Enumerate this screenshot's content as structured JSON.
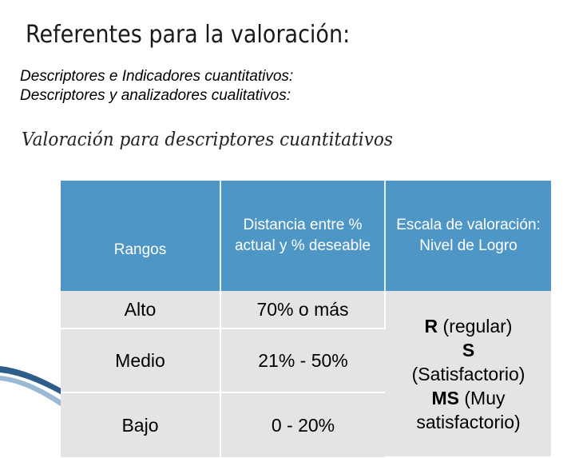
{
  "title": "Referentes para la valoración:",
  "lines": [
    "Descriptores e Indicadores cuantitativos:",
    "Descriptores y analizadores cualitativos:"
  ],
  "subtitle": "Valoración para descriptores cuantitativos",
  "table": {
    "headers": [
      "Rangos",
      "Distancia entre % actual y % deseable",
      "Escala de valoración: Nivel de Logro"
    ],
    "rows": [
      {
        "rango": "Alto",
        "distancia": "70% o más"
      },
      {
        "rango": "Medio",
        "distancia": "21% - 50%"
      },
      {
        "rango": "Bajo",
        "distancia": "0 - 20%"
      }
    ],
    "scale": [
      {
        "code": "R",
        "desc": "(regular)"
      },
      {
        "code": "S",
        "desc": "(Satisfactorio)"
      },
      {
        "code": "MS",
        "desc": "(Muy satisfactorio)"
      }
    ]
  },
  "colors": {
    "header_bg": "#4e96c6",
    "cell_bg": "#e4e4e4"
  }
}
